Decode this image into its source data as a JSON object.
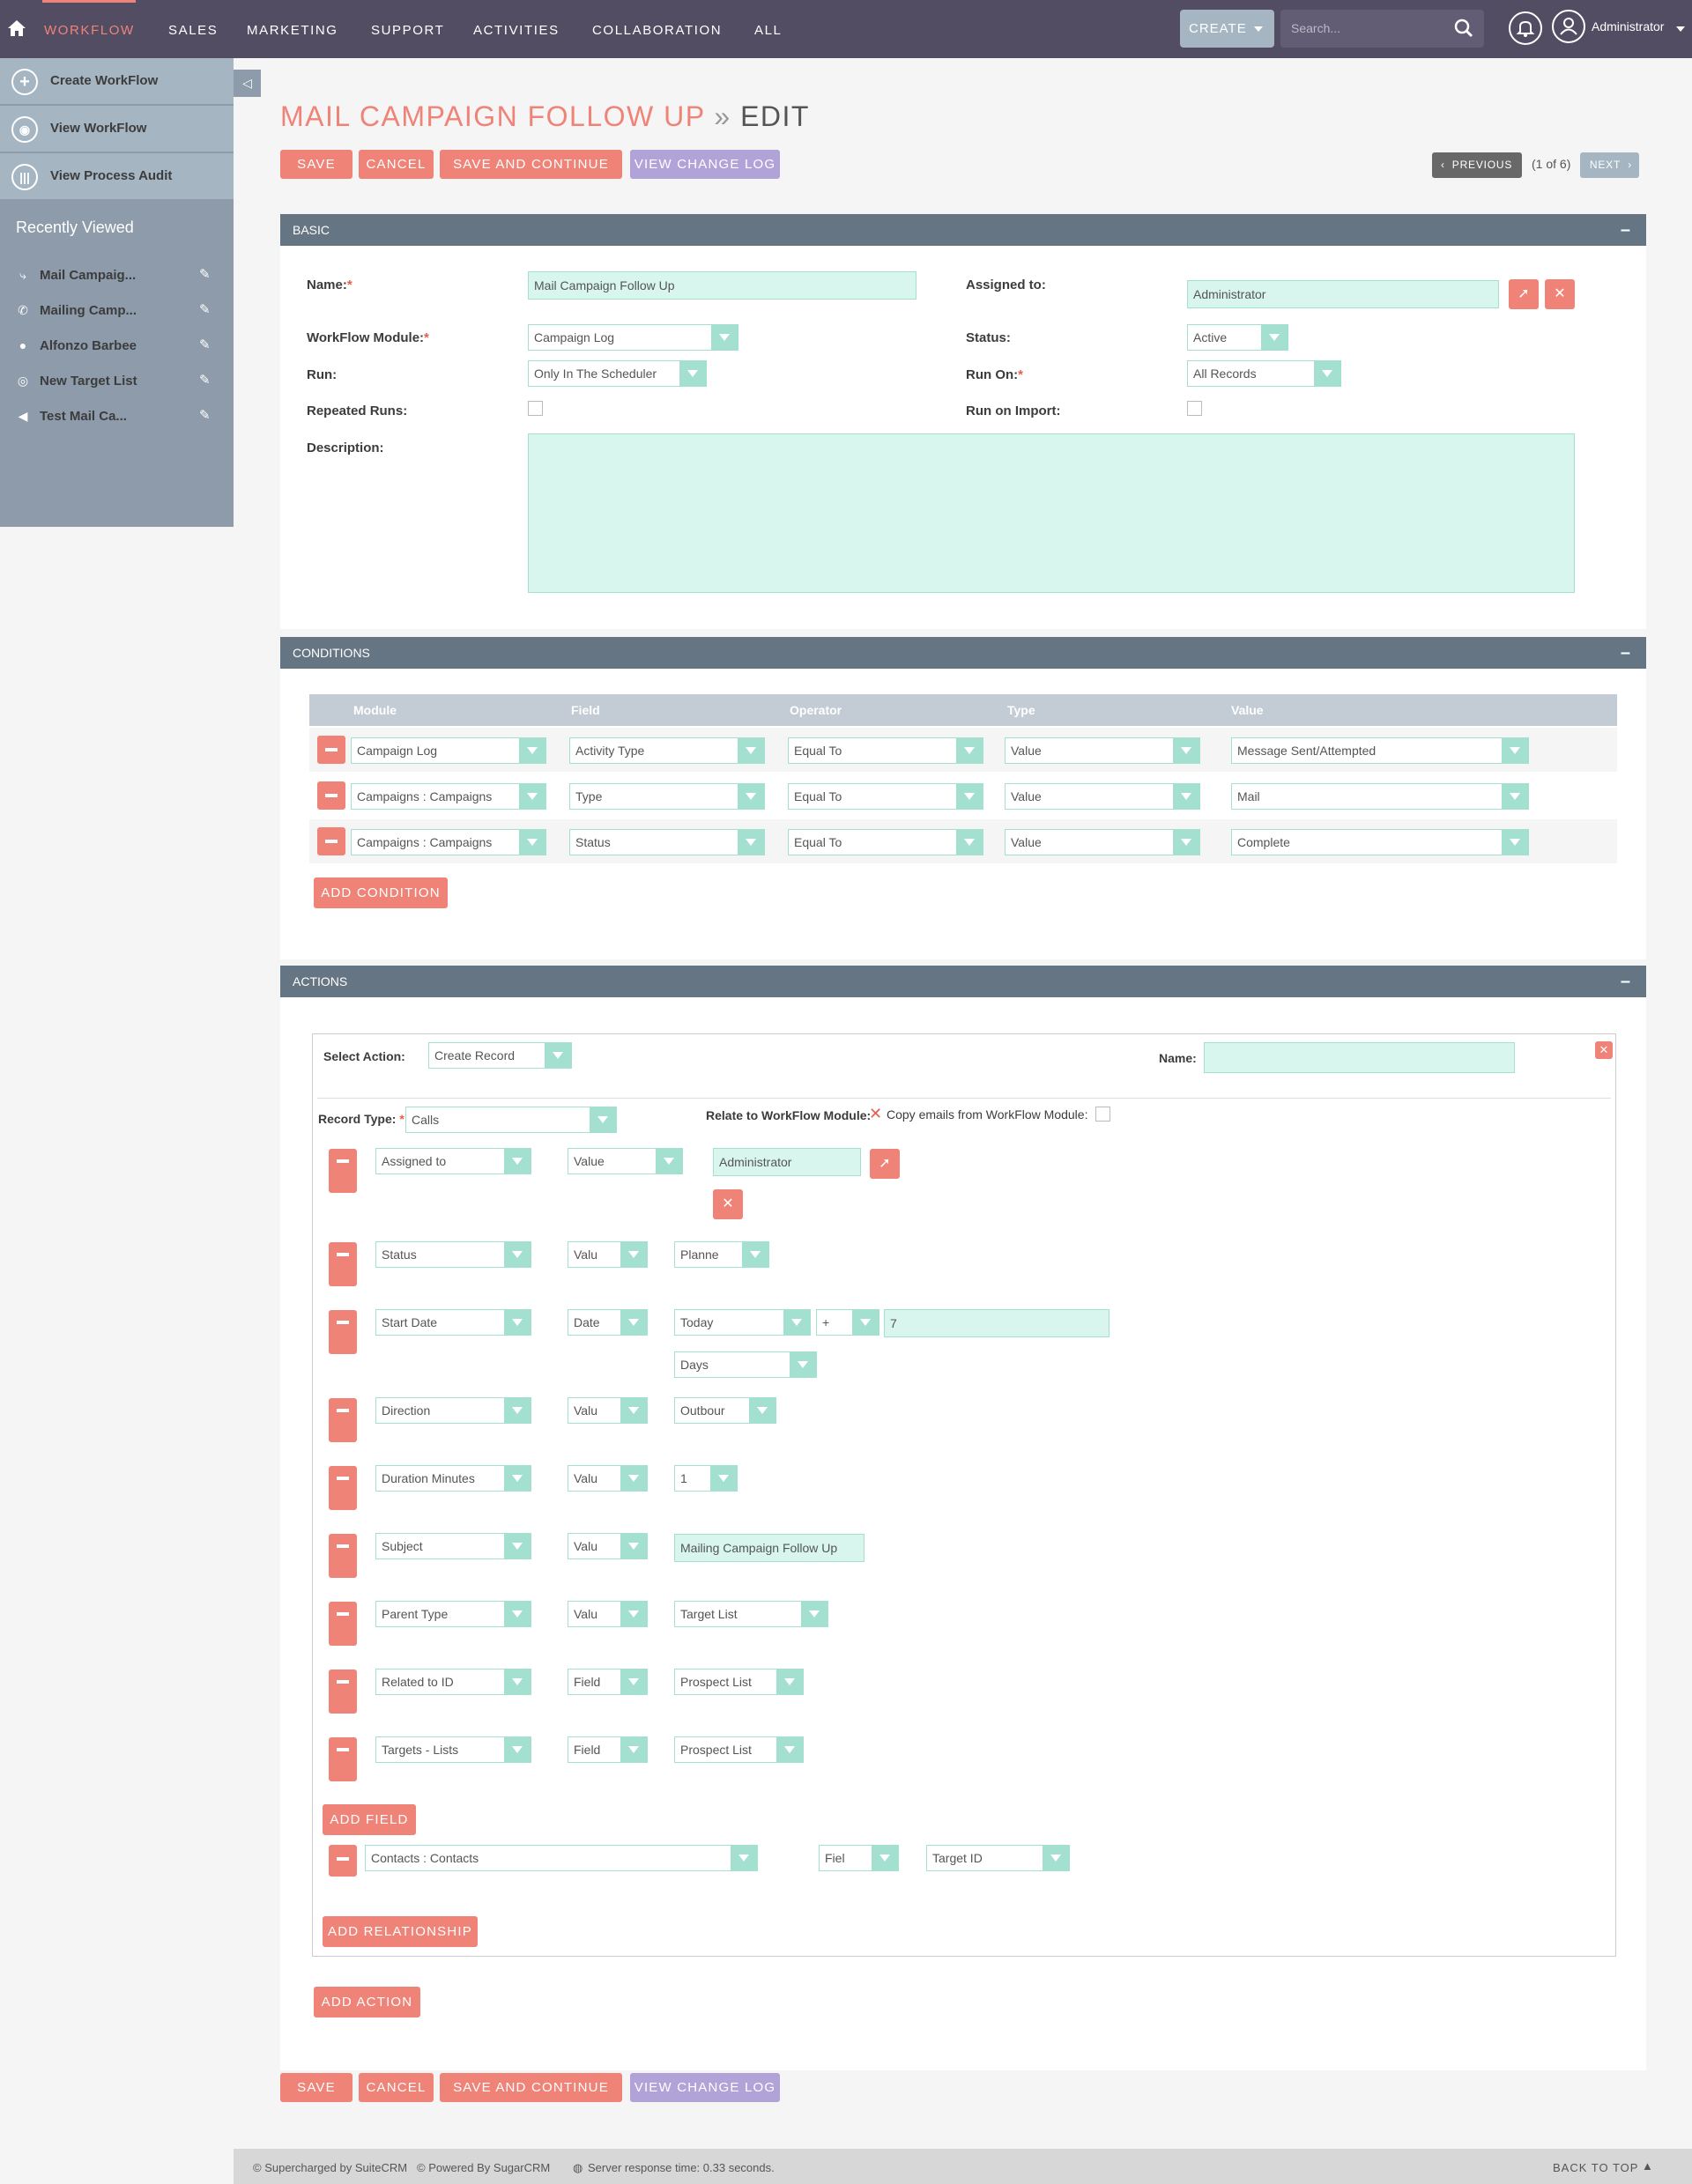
{
  "topnav": {
    "items": [
      "WORKFLOW",
      "SALES",
      "MARKETING",
      "SUPPORT",
      "ACTIVITIES",
      "COLLABORATION",
      "ALL"
    ],
    "create_label": "CREATE",
    "search_placeholder": "Search...",
    "user_name": "Administrator"
  },
  "sidebar": {
    "actions": [
      "Create WorkFlow",
      "View WorkFlow",
      "View Process Audit"
    ],
    "recent_title": "Recently Viewed",
    "recent_items": [
      "Mail Campaig...",
      "Mailing Camp...",
      "Alfonzo Barbee",
      "New Target List",
      "Test Mail Ca..."
    ]
  },
  "page": {
    "title": "MAIL CAMPAIGN FOLLOW UP",
    "separator": "»",
    "mode": "EDIT"
  },
  "buttons": {
    "save": "SAVE",
    "cancel": "CANCEL",
    "save_continue": "SAVE AND CONTINUE",
    "view_log": "VIEW CHANGE LOG",
    "previous": "PREVIOUS",
    "next": "NEXT",
    "pager": "(1 of 6)",
    "add_condition": "ADD CONDITION",
    "add_field": "ADD FIELD",
    "add_relationship": "ADD RELATIONSHIP",
    "add_action": "ADD ACTION"
  },
  "basic": {
    "header": "BASIC",
    "name_label": "Name:",
    "name_value": "Mail Campaign Follow Up",
    "assigned_label": "Assigned to:",
    "assigned_value": "Administrator",
    "module_label": "WorkFlow Module:",
    "module_value": "Campaign Log",
    "status_label": "Status:",
    "status_value": "Active",
    "run_label": "Run:",
    "run_value": "Only In The Scheduler",
    "run_on_label": "Run On:",
    "run_on_value": "All Records",
    "repeated_label": "Repeated Runs:",
    "import_label": "Run on Import:",
    "description_label": "Description:",
    "required_mark": "*"
  },
  "conditions": {
    "header": "CONDITIONS",
    "columns": [
      "Module",
      "Field",
      "Operator",
      "Type",
      "Value"
    ],
    "rows": [
      [
        "Campaign Log",
        "Activity Type",
        "Equal To",
        "Value",
        "Message Sent/Attempted"
      ],
      [
        "Campaigns : Campaigns",
        "Type",
        "Equal To",
        "Value",
        "Mail"
      ],
      [
        "Campaigns : Campaigns",
        "Status",
        "Equal To",
        "Value",
        "Complete"
      ]
    ]
  },
  "actions": {
    "header": "ACTIONS",
    "select_action_label": "Select Action:",
    "select_action_value": "Create Record",
    "name_label": "Name:",
    "record_type_label": "Record Type:",
    "record_type_value": "Calls",
    "relate_label": "Relate to WorkFlow Module:",
    "copy_label": "Copy emails from WorkFlow Module:",
    "fields": [
      {
        "field": "Assigned to",
        "type": "Value",
        "value": "Administrator"
      },
      {
        "field": "Status",
        "type": "Valu",
        "value": "Planne"
      },
      {
        "field": "Start Date",
        "type": "Date",
        "value": "Today",
        "op": "+",
        "amount": "7",
        "unit": "Days"
      },
      {
        "field": "Direction",
        "type": "Valu",
        "value": "Outbour"
      },
      {
        "field": "Duration Minutes",
        "type": "Valu",
        "value": "1"
      },
      {
        "field": "Subject",
        "type": "Valu",
        "value": "Mailing Campaign Follow Up"
      },
      {
        "field": "Parent Type",
        "type": "Valu",
        "value": "Target List"
      },
      {
        "field": "Related to ID",
        "type": "Field",
        "value": "Prospect List"
      },
      {
        "field": "Targets - Lists",
        "type": "Field",
        "value": "Prospect List"
      }
    ],
    "relationship": {
      "module": "Contacts : Contacts",
      "type": "Fiel",
      "value": "Target ID"
    }
  },
  "footer": {
    "suite": "© Supercharged by SuiteCRM",
    "sugar": "© Powered By SugarCRM",
    "response": "Server response time: 0.33 seconds.",
    "back_to_top": "BACK TO TOP"
  },
  "colors": {
    "nav_bg": "#534d64",
    "accent": "#f08377",
    "panel_header": "#657583",
    "input_bg": "#d8f5ee",
    "select_arrow": "#a3e0cf",
    "purple_button": "#b1a3d8"
  }
}
